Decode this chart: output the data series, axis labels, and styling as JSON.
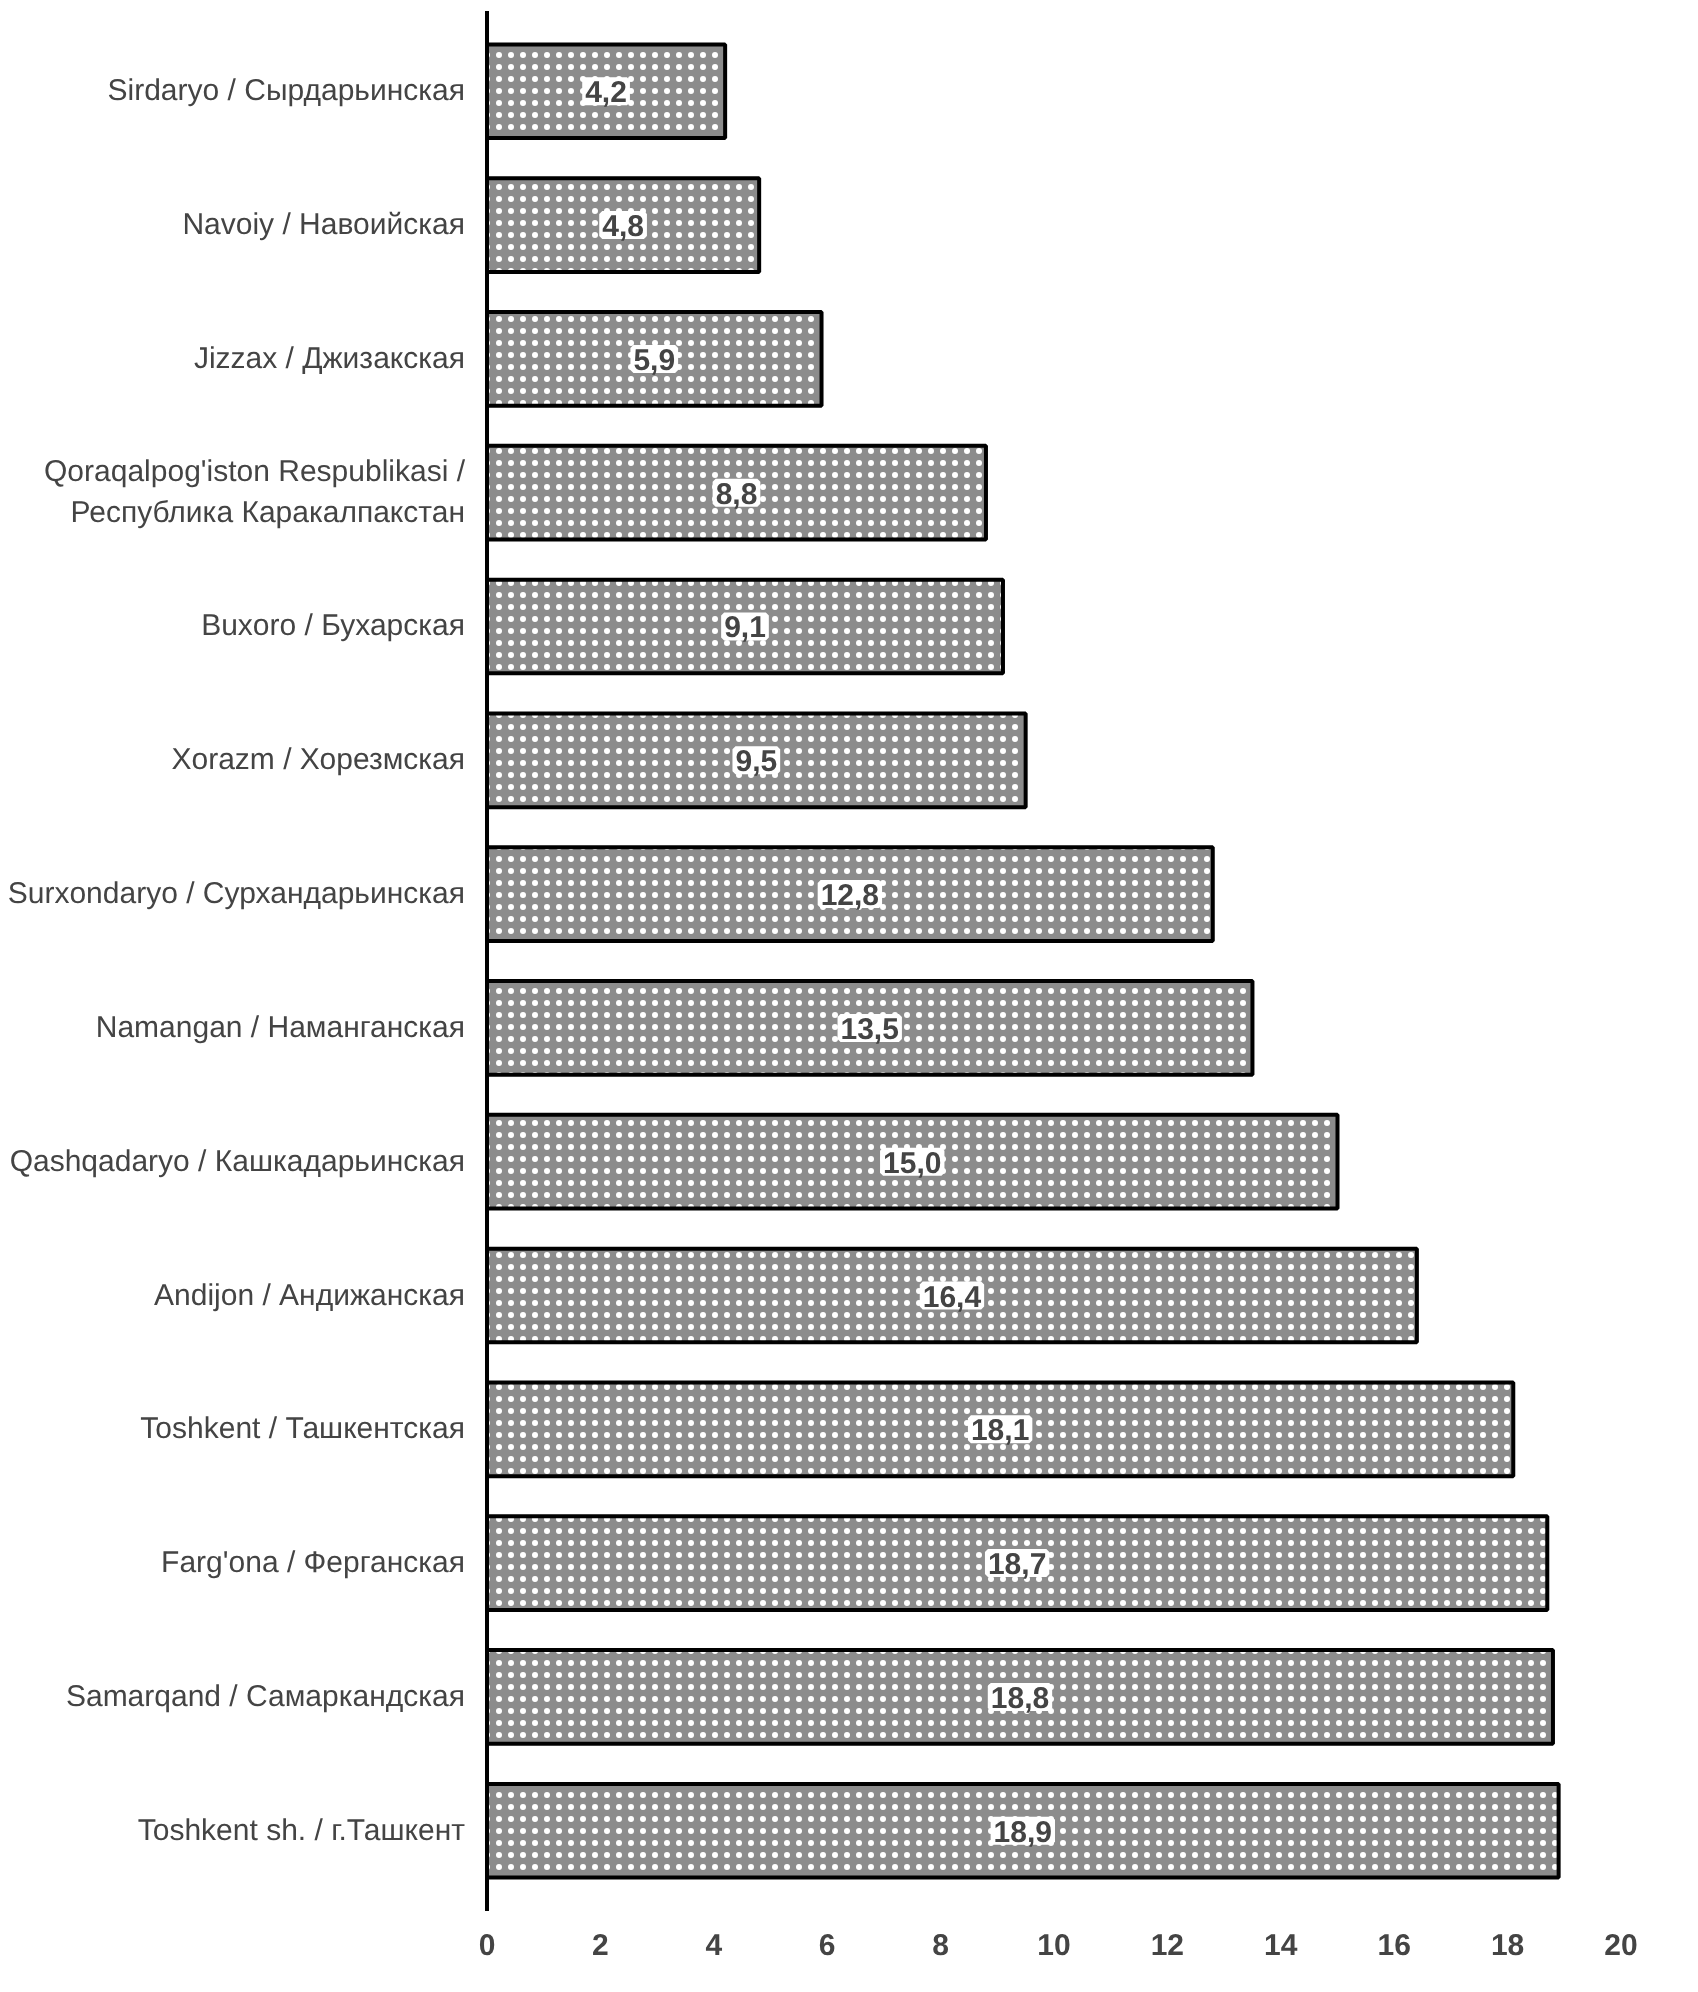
{
  "chart_data": {
    "type": "bar",
    "orientation": "horizontal",
    "categories": [
      "Sirdaryo / Сырдарьинская",
      "Navoiy / Навоийская",
      "Jizzax / Джизакская",
      "Qoraqalpog'iston Respublikasi /\nРеспублика Каракалпакстан",
      "Buxoro / Бухарская",
      "Xorazm / Хорезмская",
      "Surxondaryo / Сурхандарьинская",
      "Namangan / Наманганская",
      "Qashqadaryo / Кашкадарьинская",
      "Andijon / Андижанская",
      "Toshkent / Ташкентская",
      "Farg'ona / Ферганская",
      "Samarqand / Самаркандская",
      "Toshkent sh. / г.Ташкент"
    ],
    "values": [
      4.2,
      4.8,
      5.9,
      8.8,
      9.1,
      9.5,
      12.8,
      13.5,
      15.0,
      16.4,
      18.1,
      18.7,
      18.8,
      18.9
    ],
    "value_labels": [
      "4,2",
      "4,8",
      "5,9",
      "8,8",
      "9,1",
      "9,5",
      "12,8",
      "13,5",
      "15,0",
      "16,4",
      "18,1",
      "18,7",
      "18,8",
      "18,9"
    ],
    "color": "#8c8c8c",
    "xlim": [
      0,
      20
    ],
    "xticks": [
      0,
      2,
      4,
      6,
      8,
      10,
      12,
      14,
      16,
      18,
      20
    ],
    "grid": false
  }
}
